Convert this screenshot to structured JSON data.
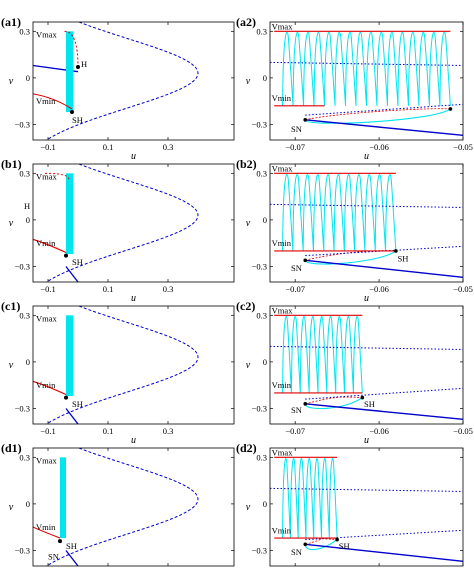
{
  "colors": {
    "cyan": "#00e5ee",
    "red": "#e00000",
    "blue": "#0000cc",
    "black": "#000000"
  },
  "chart_data": [
    {
      "type": "line",
      "label": "(a1)",
      "xlabel": "u",
      "ylabel": "v",
      "xlim": [
        -0.15,
        0.52
      ],
      "ylim": [
        -0.4,
        0.36
      ],
      "xticks": [
        -0.1,
        0.1,
        0.3
      ],
      "yticks": [
        -0.3,
        0,
        0.3
      ],
      "fold_u": 0.4,
      "cyan_band": {
        "u": [
          -0.04,
          -0.015
        ],
        "v": [
          -0.22,
          0.3
        ]
      },
      "blue_stable_v": [
        0.04,
        0.08
      ],
      "red_upper": {
        "u": [
          -0.045,
          0.0
        ],
        "v": [
          0.3,
          0.07
        ]
      },
      "red_lower": {
        "u": [
          -0.085,
          -0.02
        ],
        "v": [
          -0.12,
          -0.2
        ]
      },
      "annotations": [
        {
          "text": "Vmax",
          "u": -0.14,
          "v": 0.28
        },
        {
          "text": "H",
          "u": 0.01,
          "v": 0.09
        },
        {
          "text": "Vmin",
          "u": -0.14,
          "v": -0.15
        },
        {
          "text": "SH",
          "u": -0.02,
          "v": -0.27
        }
      ],
      "points": [
        {
          "u": 0.0,
          "v": 0.07
        },
        {
          "u": -0.02,
          "v": -0.22
        }
      ]
    },
    {
      "type": "line",
      "label": "(b1)",
      "xlabel": "u",
      "ylabel": "v",
      "xlim": [
        -0.15,
        0.52
      ],
      "ylim": [
        -0.4,
        0.36
      ],
      "xticks": [
        -0.1,
        0.1,
        0.3
      ],
      "yticks": [
        -0.3,
        0,
        0.3
      ],
      "fold_u": 0.4,
      "cyan_band": {
        "u": [
          -0.04,
          -0.015
        ],
        "v": [
          -0.22,
          0.3
        ]
      },
      "blue_stable_v": [
        -0.4,
        -0.33
      ],
      "red_upper": {
        "u": [
          -0.11,
          -0.03
        ],
        "v": [
          0.3,
          0.26
        ]
      },
      "red_lower": {
        "u": [
          -0.12,
          -0.04
        ],
        "v": [
          -0.14,
          -0.21
        ]
      },
      "annotations": [
        {
          "text": "Vmax",
          "u": -0.14,
          "v": 0.28
        },
        {
          "text": "H",
          "u": -0.18,
          "v": 0.09
        },
        {
          "text": "Vmin",
          "u": -0.14,
          "v": -0.15
        },
        {
          "text": "SH",
          "u": -0.02,
          "v": -0.27
        }
      ],
      "points": [
        {
          "u": -0.04,
          "v": -0.23
        }
      ]
    },
    {
      "type": "line",
      "label": "(c1)",
      "xlabel": "u",
      "ylabel": "v",
      "xlim": [
        -0.15,
        0.52
      ],
      "ylim": [
        -0.4,
        0.36
      ],
      "xticks": [
        -0.1,
        0.1,
        0.3
      ],
      "yticks": [
        -0.3,
        0,
        0.3
      ],
      "fold_u": 0.4,
      "cyan_band": {
        "u": [
          -0.04,
          -0.015
        ],
        "v": [
          -0.22,
          0.3
        ]
      },
      "blue_stable_v": [
        -0.4,
        -0.33
      ],
      "red_upper": null,
      "red_lower": {
        "u": [
          -0.12,
          -0.04
        ],
        "v": [
          -0.14,
          -0.21
        ]
      },
      "annotations": [
        {
          "text": "Vmax",
          "u": -0.14,
          "v": 0.28
        },
        {
          "text": "Vmin",
          "u": -0.14,
          "v": -0.15
        },
        {
          "text": "SH",
          "u": -0.02,
          "v": -0.27
        }
      ],
      "points": [
        {
          "u": -0.04,
          "v": -0.23
        }
      ]
    },
    {
      "type": "line",
      "label": "(d1)",
      "xlabel": "u",
      "ylabel": "v",
      "xlim": [
        -0.15,
        0.52
      ],
      "ylim": [
        -0.4,
        0.36
      ],
      "xticks": [
        -0.1,
        0.1,
        0.3
      ],
      "yticks": [
        -0.3,
        0,
        0.3
      ],
      "fold_u": 0.4,
      "cyan_band": {
        "u": [
          -0.06,
          -0.04
        ],
        "v": [
          -0.22,
          0.3
        ]
      },
      "blue_stable_v": [
        -0.4,
        -0.33
      ],
      "red_upper": null,
      "red_lower": {
        "u": [
          -0.14,
          -0.06
        ],
        "v": [
          -0.16,
          -0.22
        ]
      },
      "annotations": [
        {
          "text": "Vmax",
          "u": -0.14,
          "v": 0.28
        },
        {
          "text": "Vmin",
          "u": -0.14,
          "v": -0.15
        },
        {
          "text": "SH",
          "u": -0.04,
          "v": -0.27
        },
        {
          "text": "SN",
          "u": -0.1,
          "v": -0.34
        }
      ],
      "points": [
        {
          "u": -0.06,
          "v": -0.24
        }
      ]
    },
    {
      "type": "line",
      "label": "(a2)",
      "xlabel": "u",
      "ylabel": "v",
      "xlim": [
        -0.073,
        -0.05
      ],
      "ylim": [
        -0.4,
        0.36
      ],
      "xticks": [
        -0.07,
        -0.06,
        -0.05
      ],
      "yticks": [
        -0.3,
        0,
        0.3
      ],
      "orbit": {
        "u_start": -0.0715,
        "u_end": -0.0515,
        "v_min": -0.18,
        "v_max": 0.28,
        "n_cycles": 16
      },
      "vmax_line": {
        "u": [
          -0.0725,
          -0.0515
        ],
        "v": 0.3
      },
      "vmin_line": {
        "u": [
          -0.0725,
          -0.0665
        ],
        "v": -0.18
      },
      "homoclinic": {
        "u_sn": -0.0688,
        "v_sn": -0.27,
        "u_sh": -0.0515,
        "v_sh": -0.2
      },
      "blue_stable": {
        "u": [
          -0.0688,
          -0.05
        ],
        "v": [
          -0.27,
          -0.37
        ]
      },
      "annotations": [
        {
          "text": "Vmax",
          "u": -0.0728,
          "v": 0.33
        },
        {
          "text": "Vmin",
          "u": -0.0728,
          "v": -0.13
        },
        {
          "text": "SN",
          "u": -0.0705,
          "v": -0.33
        }
      ]
    },
    {
      "type": "line",
      "label": "(b2)",
      "xlabel": "u",
      "ylabel": "v",
      "xlim": [
        -0.073,
        -0.05
      ],
      "ylim": [
        -0.4,
        0.36
      ],
      "xticks": [
        -0.07,
        -0.06,
        -0.05
      ],
      "yticks": [
        -0.3,
        0,
        0.3
      ],
      "orbit": {
        "u_start": -0.0715,
        "u_end": -0.058,
        "v_min": -0.2,
        "v_max": 0.28,
        "n_cycles": 11
      },
      "vmax_line": {
        "u": [
          -0.0725,
          -0.058
        ],
        "v": 0.3
      },
      "vmin_line": {
        "u": [
          -0.0725,
          -0.058
        ],
        "v": -0.2
      },
      "homoclinic": {
        "u_sn": -0.0688,
        "v_sn": -0.26,
        "u_sh": -0.058,
        "v_sh": -0.2
      },
      "blue_stable": {
        "u": [
          -0.0688,
          -0.05
        ],
        "v": [
          -0.26,
          -0.37
        ]
      },
      "annotations": [
        {
          "text": "Vmax",
          "u": -0.0728,
          "v": 0.33
        },
        {
          "text": "Vmin",
          "u": -0.0728,
          "v": -0.15
        },
        {
          "text": "SN",
          "u": -0.0705,
          "v": -0.31
        },
        {
          "text": "SH",
          "u": -0.0578,
          "v": -0.25
        }
      ]
    },
    {
      "type": "line",
      "label": "(c2)",
      "xlabel": "u",
      "ylabel": "v",
      "xlim": [
        -0.073,
        -0.05
      ],
      "ylim": [
        -0.4,
        0.36
      ],
      "xticks": [
        -0.07,
        -0.06,
        -0.05
      ],
      "yticks": [
        -0.3,
        0,
        0.3
      ],
      "orbit": {
        "u_start": -0.0715,
        "u_end": -0.062,
        "v_min": -0.2,
        "v_max": 0.28,
        "n_cycles": 9
      },
      "vmax_line": {
        "u": [
          -0.0725,
          -0.062
        ],
        "v": 0.3
      },
      "vmin_line": {
        "u": [
          -0.0725,
          -0.062
        ],
        "v": -0.2
      },
      "homoclinic": {
        "u_sn": -0.0688,
        "v_sn": -0.27,
        "u_sh": -0.062,
        "v_sh": -0.23
      },
      "blue_stable": {
        "u": [
          -0.0688,
          -0.05
        ],
        "v": [
          -0.27,
          -0.37
        ]
      },
      "annotations": [
        {
          "text": "Vmax",
          "u": -0.0728,
          "v": 0.33
        },
        {
          "text": "Vmin",
          "u": -0.0728,
          "v": -0.15
        },
        {
          "text": "SN",
          "u": -0.0705,
          "v": -0.31
        },
        {
          "text": "SH",
          "u": -0.0618,
          "v": -0.27
        }
      ]
    },
    {
      "type": "line",
      "label": "(d2)",
      "xlabel": "u",
      "ylabel": "v",
      "xlim": [
        -0.073,
        -0.05
      ],
      "ylim": [
        -0.4,
        0.36
      ],
      "xticks": [
        -0.07,
        -0.06,
        -0.05
      ],
      "yticks": [
        -0.3,
        0,
        0.3
      ],
      "orbit": {
        "u_start": -0.0715,
        "u_end": -0.065,
        "v_min": -0.22,
        "v_max": 0.28,
        "n_cycles": 7
      },
      "vmax_line": {
        "u": [
          -0.0725,
          -0.065
        ],
        "v": 0.3
      },
      "vmin_line": {
        "u": [
          -0.0725,
          -0.065
        ],
        "v": -0.22
      },
      "homoclinic": {
        "u_sn": -0.0688,
        "v_sn": -0.26,
        "u_sh": -0.065,
        "v_sh": -0.23
      },
      "blue_stable": {
        "u": [
          -0.0688,
          -0.05
        ],
        "v": [
          -0.26,
          -0.37
        ]
      },
      "annotations": [
        {
          "text": "Vmax",
          "u": -0.0728,
          "v": 0.33
        },
        {
          "text": "Vmin",
          "u": -0.0728,
          "v": -0.17
        },
        {
          "text": "SN",
          "u": -0.0705,
          "v": -0.31
        },
        {
          "text": "SH",
          "u": -0.0648,
          "v": -0.27
        }
      ]
    }
  ]
}
